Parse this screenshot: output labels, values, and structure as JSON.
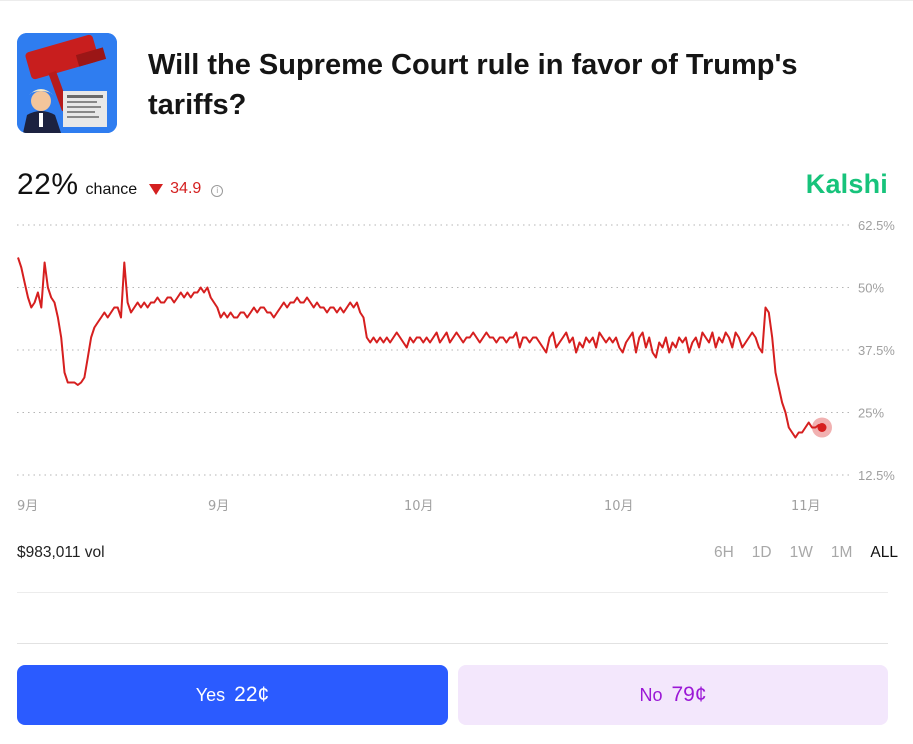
{
  "market": {
    "title": "Will the Supreme Court rule in favor of Trump's tariffs?",
    "image_alt": "gavel-and-trump-thumbnail",
    "probability": "22%",
    "probability_label": "chance",
    "change": "34.9",
    "change_direction": "down",
    "brand": "Kalshi",
    "volume": "$983,011 vol"
  },
  "time_ranges": {
    "items": [
      "6H",
      "1D",
      "1W",
      "1M",
      "ALL"
    ],
    "selected": "ALL"
  },
  "buttons": {
    "yes_label": "Yes",
    "yes_price": "22¢",
    "no_label": "No",
    "no_price": "79¢"
  },
  "colors": {
    "line": "#d61f1f",
    "brand": "#17c37b",
    "yes_bg": "#2b5bff",
    "no_bg": "#f3e7fc",
    "no_text": "#9b18d6",
    "negative": "#d42020"
  },
  "chart_data": {
    "type": "line",
    "y_ticks": [
      "62.5%",
      "50%",
      "37.5%",
      "25%",
      "12.5%"
    ],
    "y_tick_values": [
      62.5,
      50,
      37.5,
      25,
      12.5
    ],
    "ylim": [
      12.5,
      62.5
    ],
    "x_ticks": [
      "9月",
      "9月",
      "10月",
      "10月",
      "11月"
    ],
    "grid": true,
    "series": [
      {
        "values": [
          56,
          54,
          51,
          48,
          46,
          47,
          49,
          46,
          55,
          50,
          48,
          47,
          44,
          40,
          33,
          31,
          31,
          31,
          30.5,
          31,
          32,
          36,
          40,
          42,
          43,
          44,
          45,
          44,
          45,
          46,
          46,
          44,
          55,
          47,
          45,
          46,
          47,
          46,
          47,
          46,
          47,
          47,
          48,
          47,
          47,
          48,
          48,
          47,
          48,
          49,
          48,
          49,
          48,
          49,
          49,
          50,
          49,
          50,
          48,
          47,
          46,
          44,
          45,
          44,
          45,
          44,
          44,
          45,
          45,
          44,
          45,
          46,
          45,
          46,
          46,
          45,
          45,
          44,
          45,
          46,
          47,
          46,
          47,
          47,
          48,
          47,
          47,
          48,
          47,
          46,
          47,
          46,
          46,
          45,
          46,
          46,
          45,
          46,
          45,
          46,
          47,
          46,
          47,
          45,
          44,
          40,
          39,
          40,
          39,
          40,
          39,
          40,
          39,
          40,
          41,
          40,
          39,
          38,
          40,
          39,
          40,
          40,
          39,
          40,
          39,
          40,
          41,
          39,
          40,
          41,
          39,
          40,
          41,
          40,
          39,
          40,
          40,
          41,
          40,
          39,
          40,
          41,
          40,
          40,
          39,
          40,
          40,
          39,
          40,
          40,
          41,
          38,
          40,
          40,
          39,
          40,
          40,
          39,
          38,
          37,
          40,
          41,
          38,
          39,
          40,
          41,
          39,
          40,
          37,
          39,
          38,
          40,
          39,
          40,
          38,
          41,
          40,
          39,
          40,
          39,
          40,
          38,
          37,
          39,
          40,
          41,
          37,
          40,
          41,
          38,
          40,
          37,
          36,
          39,
          38,
          40,
          37,
          39,
          38,
          40,
          39,
          40,
          37,
          39,
          40,
          38,
          41,
          40,
          39,
          41,
          38,
          40,
          39,
          41,
          40,
          38,
          41,
          40,
          38,
          39,
          40,
          41,
          40,
          38,
          37,
          46,
          45,
          40,
          33,
          30,
          27,
          25,
          22,
          21,
          20,
          21,
          21,
          22,
          23,
          22,
          22,
          22.5,
          22
        ]
      }
    ],
    "current": 22
  }
}
